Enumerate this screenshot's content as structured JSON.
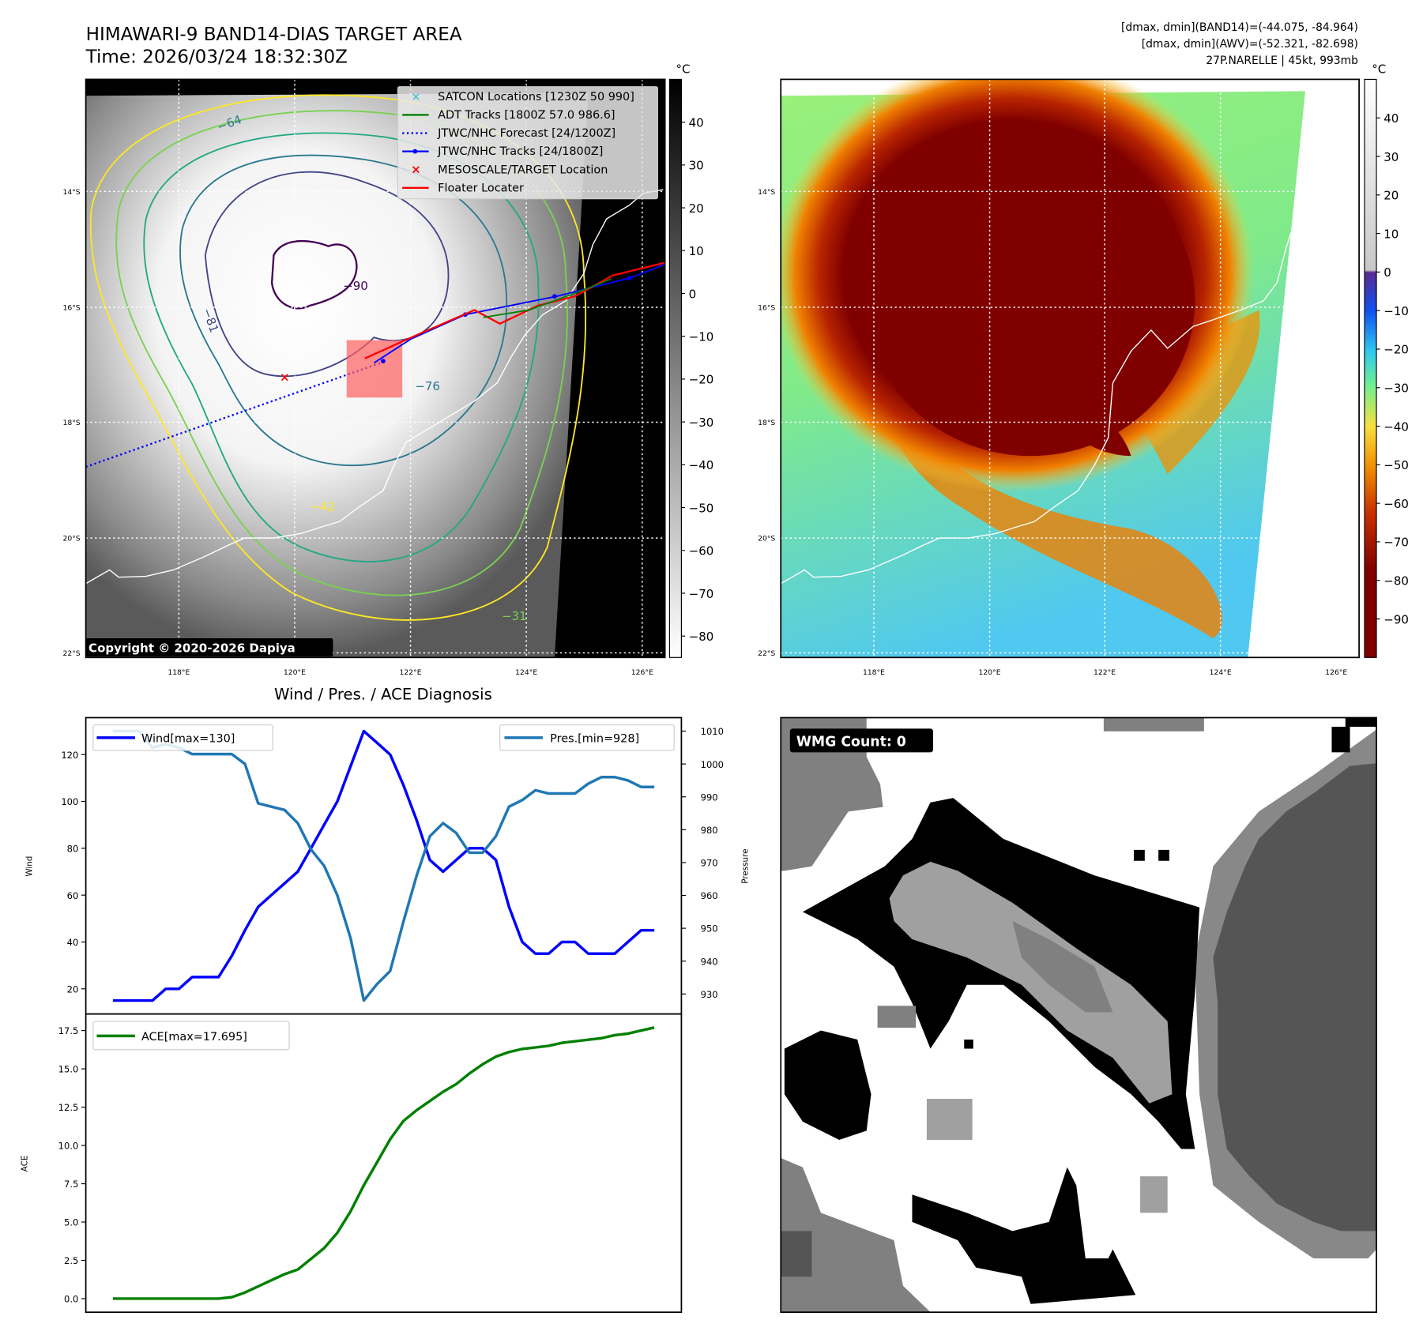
{
  "header": {
    "title_line1": "HIMAWARI-9 BAND14-DIAS TARGET AREA",
    "title_line2": "Time: 2026/03/24 18:32:30Z",
    "info_line1": "[dmax, dmin](BAND14)=(-44.075, -84.964)",
    "info_line2": "[dmax, dmin](AWV)=(-52.321, -82.698)",
    "info_line3": "27P.NARELLE | 45kt, 993mb"
  },
  "maps": {
    "lat_labels": [
      "14°S",
      "16°S",
      "18°S",
      "20°S",
      "22°S"
    ],
    "lon_labels": [
      "118°E",
      "120°E",
      "122°E",
      "124°E",
      "126°E"
    ],
    "unit_label": "°C",
    "left_colorbar_ticks": [
      "40",
      "30",
      "20",
      "10",
      "0",
      "−10",
      "−20",
      "−30",
      "−40",
      "−50",
      "−60",
      "−70",
      "−80"
    ],
    "right_colorbar_ticks": [
      "40",
      "30",
      "20",
      "10",
      "0",
      "−10",
      "−20",
      "−30",
      "−40",
      "−50",
      "−60",
      "−70",
      "−80",
      "−90"
    ],
    "contour_labels": [
      "−64",
      "−81",
      "−90",
      "−76",
      "−31",
      "−42"
    ],
    "copyright": "Copyright © 2020-2026 Dapiya",
    "legend": [
      {
        "label": "SATCON Locations [1230Z 50 990]",
        "color": "#17becf"
      },
      {
        "label": "ADT Tracks [1800Z 57.0 986.6]",
        "color": "#008000"
      },
      {
        "label": "JTWC/NHC Forecast [24/1200Z]",
        "color": "#0000ff"
      },
      {
        "label": "JTWC/NHC Tracks [24/1800Z]",
        "color": "#0000ff"
      },
      {
        "label": "MESOSCALE/TARGET Location",
        "color": "#ff0000"
      },
      {
        "label": "Floater Locater",
        "color": "#ff0000"
      }
    ]
  },
  "wmg": {
    "label": "WMG Count: 0"
  },
  "chart_data": [
    {
      "type": "line",
      "title": "Wind / Pres. / ACE Diagnosis",
      "ylabel": "Wind",
      "y2label": "Pressure",
      "xlim": [
        -2.05,
        43.05
      ],
      "ylim": [
        9.25,
        135.75
      ],
      "y2lim": [
        923.9,
        1014.1
      ],
      "yticks": [
        20,
        40,
        60,
        80,
        100,
        120
      ],
      "y2ticks": [
        930,
        940,
        950,
        960,
        970,
        980,
        990,
        1000,
        1010
      ],
      "series": [
        {
          "name": "Wind[max=130]",
          "axis": "left",
          "color": "#0000ff",
          "legend": "top-left",
          "values": [
            15,
            15,
            15,
            15,
            20,
            20,
            25,
            25,
            25,
            34,
            45,
            55,
            60,
            65,
            70,
            80,
            90,
            100,
            115,
            130,
            125,
            120,
            107,
            92,
            75,
            70,
            75,
            80,
            80,
            75,
            55,
            40,
            35,
            35,
            40,
            40,
            35,
            35,
            35,
            40,
            45,
            45
          ]
        },
        {
          "name": "Pres.[min=928]",
          "axis": "right",
          "color": "#1f77b4",
          "legend": "top-right",
          "values": [
            1010,
            1010,
            1010,
            1005,
            1006,
            1005,
            1003,
            1003,
            1003,
            1003,
            1000,
            988,
            987,
            986,
            982,
            974,
            969,
            960,
            947,
            928,
            933,
            937,
            952,
            966,
            978,
            982,
            979,
            973,
            973,
            978,
            987,
            989,
            992,
            991,
            991,
            991,
            994,
            996,
            996,
            995,
            993,
            993
          ]
        }
      ]
    },
    {
      "type": "line",
      "ylabel": "ACE",
      "xlim": [
        -2.05,
        43.05
      ],
      "ylim": [
        -0.885,
        18.58
      ],
      "yticks": [
        0.0,
        2.5,
        5.0,
        7.5,
        10.0,
        12.5,
        15.0,
        17.5
      ],
      "yticklabels": [
        "0.0",
        "2.5",
        "5.0",
        "7.5",
        "10.0",
        "12.5",
        "15.0",
        "17.5"
      ],
      "series": [
        {
          "name": "ACE[max=17.695]",
          "color": "#008000",
          "legend": "top-left",
          "values": [
            0,
            0,
            0,
            0,
            0,
            0,
            0,
            0,
            0,
            0.1,
            0.4,
            0.8,
            1.2,
            1.6,
            1.9,
            2.6,
            3.3,
            4.3,
            5.7,
            7.4,
            8.9,
            10.4,
            11.6,
            12.3,
            12.9,
            13.5,
            14.0,
            14.7,
            15.3,
            15.8,
            16.1,
            16.3,
            16.4,
            16.5,
            16.7,
            16.8,
            16.9,
            17.0,
            17.2,
            17.3,
            17.5,
            17.695
          ]
        }
      ]
    }
  ]
}
